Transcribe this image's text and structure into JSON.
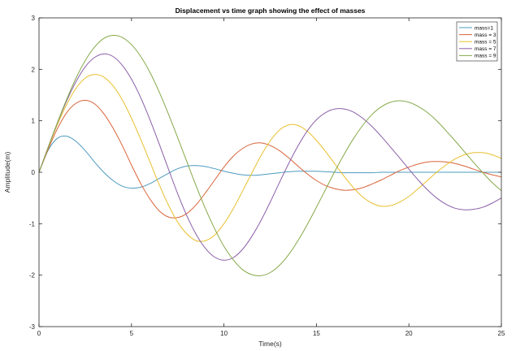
{
  "chart_data": {
    "type": "line",
    "title": "Displacement vs time graph showing the effect of masses",
    "xlabel": "Time(s)",
    "ylabel": "Amplitude(m)",
    "xlim": [
      0,
      25
    ],
    "ylim": [
      -3,
      3
    ],
    "xticks": [
      0,
      5,
      10,
      15,
      20,
      25
    ],
    "yticks": [
      -3,
      -2,
      -1,
      0,
      1,
      2,
      3
    ],
    "grid": false,
    "legend_position": "top-right",
    "series": [
      {
        "name": "mass=1",
        "color": "#4d9bbf",
        "x": [
          0,
          0.5,
          1,
          1.5,
          2,
          2.5,
          3,
          3.5,
          4,
          4.5,
          5,
          5.5,
          6,
          6.5,
          7,
          7.5,
          8,
          8.5,
          9,
          9.5,
          10,
          10.5,
          11,
          11.5,
          12,
          12.5,
          13,
          13.5,
          14,
          14.5,
          15,
          15.5,
          16,
          16.5,
          17,
          17.5,
          18,
          18.5,
          19,
          19.5,
          20,
          20.5,
          21,
          21.5,
          22,
          22.5,
          23,
          23.5,
          24,
          24.5,
          25
        ],
        "values": [
          0,
          0.43,
          0.66,
          0.7,
          0.6,
          0.42,
          0.2,
          0.0,
          -0.16,
          -0.27,
          -0.31,
          -0.29,
          -0.22,
          -0.12,
          -0.02,
          0.07,
          0.12,
          0.13,
          0.11,
          0.07,
          0.02,
          -0.02,
          -0.05,
          -0.06,
          -0.05,
          -0.03,
          -0.01,
          0.01,
          0.02,
          0.02,
          0.02,
          0.01,
          0,
          -0.01,
          -0.01,
          -0.01,
          -0.01,
          0,
          0,
          0,
          0,
          0,
          0,
          0,
          0,
          0,
          0,
          0,
          0,
          0,
          0
        ]
      },
      {
        "name": "mass = 3",
        "color": "#d9643a",
        "x": [
          0,
          0.5,
          1,
          1.5,
          2,
          2.5,
          3,
          3.5,
          4,
          4.5,
          5,
          5.5,
          6,
          6.5,
          7,
          7.5,
          8,
          8.5,
          9,
          9.5,
          10,
          10.5,
          11,
          11.5,
          12,
          12.5,
          13,
          13.5,
          14,
          14.5,
          15,
          15.5,
          16,
          16.5,
          17,
          17.5,
          18,
          18.5,
          19,
          19.5,
          20,
          20.5,
          21,
          21.5,
          22,
          22.5,
          23,
          23.5,
          24,
          24.5,
          25
        ],
        "values": [
          0,
          0.45,
          0.85,
          1.16,
          1.34,
          1.4,
          1.33,
          1.14,
          0.86,
          0.52,
          0.14,
          -0.22,
          -0.52,
          -0.75,
          -0.87,
          -0.88,
          -0.8,
          -0.63,
          -0.4,
          -0.15,
          0.1,
          0.31,
          0.46,
          0.55,
          0.57,
          0.52,
          0.42,
          0.28,
          0.12,
          -0.03,
          -0.16,
          -0.26,
          -0.32,
          -0.35,
          -0.34,
          -0.3,
          -0.23,
          -0.15,
          -0.06,
          0.03,
          0.1,
          0.16,
          0.2,
          0.21,
          0.2,
          0.17,
          0.12,
          0.06,
          0.0,
          -0.05,
          -0.09
        ]
      },
      {
        "name": "mass = 5",
        "color": "#e8c02f",
        "x": [
          0,
          0.5,
          1,
          1.5,
          2,
          2.5,
          3,
          3.5,
          4,
          4.5,
          5,
          5.5,
          6,
          6.5,
          7,
          7.5,
          8,
          8.5,
          9,
          9.5,
          10,
          10.5,
          11,
          11.5,
          12,
          12.5,
          13,
          13.5,
          14,
          14.5,
          15,
          15.5,
          16,
          16.5,
          17,
          17.5,
          18,
          18.5,
          19,
          19.5,
          20,
          20.5,
          21,
          21.5,
          22,
          22.5,
          23,
          23.5,
          24,
          24.5,
          25
        ],
        "values": [
          0,
          0.48,
          0.93,
          1.32,
          1.63,
          1.83,
          1.9,
          1.85,
          1.68,
          1.41,
          1.05,
          0.64,
          0.2,
          -0.24,
          -0.64,
          -0.97,
          -1.2,
          -1.33,
          -1.33,
          -1.22,
          -1.0,
          -0.71,
          -0.37,
          -0.02,
          0.32,
          0.61,
          0.82,
          0.92,
          0.91,
          0.8,
          0.62,
          0.4,
          0.16,
          -0.08,
          -0.3,
          -0.48,
          -0.6,
          -0.66,
          -0.65,
          -0.58,
          -0.47,
          -0.32,
          -0.16,
          0.0,
          0.14,
          0.26,
          0.34,
          0.38,
          0.38,
          0.34,
          0.27
        ]
      },
      {
        "name": "mass = 7",
        "color": "#8b5fa8",
        "x": [
          0,
          0.5,
          1,
          1.5,
          2,
          2.5,
          3,
          3.5,
          4,
          4.5,
          5,
          5.5,
          6,
          6.5,
          7,
          7.5,
          8,
          8.5,
          9,
          9.5,
          10,
          10.5,
          11,
          11.5,
          12,
          12.5,
          13,
          13.5,
          14,
          14.5,
          15,
          15.5,
          16,
          16.5,
          17,
          17.5,
          18,
          18.5,
          19,
          19.5,
          20,
          20.5,
          21,
          21.5,
          22,
          22.5,
          23,
          23.5,
          24,
          24.5,
          25
        ],
        "values": [
          0,
          0.49,
          0.96,
          1.39,
          1.76,
          2.05,
          2.23,
          2.3,
          2.25,
          2.08,
          1.81,
          1.45,
          1.02,
          0.55,
          0.06,
          -0.42,
          -0.85,
          -1.21,
          -1.48,
          -1.65,
          -1.71,
          -1.66,
          -1.5,
          -1.25,
          -0.94,
          -0.58,
          -0.2,
          0.17,
          0.51,
          0.8,
          1.02,
          1.16,
          1.23,
          1.23,
          1.17,
          1.05,
          0.89,
          0.7,
          0.49,
          0.28,
          0.06,
          -0.15,
          -0.34,
          -0.5,
          -0.62,
          -0.7,
          -0.73,
          -0.72,
          -0.68,
          -0.6,
          -0.5
        ]
      },
      {
        "name": "mass = 9",
        "color": "#86a94a",
        "x": [
          0,
          0.5,
          1,
          1.5,
          2,
          2.5,
          3,
          3.5,
          4,
          4.5,
          5,
          5.5,
          6,
          6.5,
          7,
          7.5,
          8,
          8.5,
          9,
          9.5,
          10,
          10.5,
          11,
          11.5,
          12,
          12.5,
          13,
          13.5,
          14,
          14.5,
          15,
          15.5,
          16,
          16.5,
          17,
          17.5,
          18,
          18.5,
          19,
          19.5,
          20,
          20.5,
          21,
          21.5,
          22,
          22.5,
          23,
          23.5,
          24,
          24.5,
          25
        ],
        "values": [
          0,
          0.49,
          0.97,
          1.42,
          1.83,
          2.17,
          2.43,
          2.6,
          2.66,
          2.62,
          2.48,
          2.25,
          1.94,
          1.56,
          1.13,
          0.67,
          0.2,
          -0.27,
          -0.71,
          -1.1,
          -1.44,
          -1.7,
          -1.89,
          -1.99,
          -2.01,
          -1.95,
          -1.81,
          -1.6,
          -1.33,
          -1.02,
          -0.68,
          -0.33,
          0.02,
          0.35,
          0.65,
          0.91,
          1.12,
          1.27,
          1.36,
          1.39,
          1.36,
          1.28,
          1.16,
          1.0,
          0.81,
          0.61,
          0.4,
          0.19,
          -0.01,
          -0.2,
          -0.36
        ]
      }
    ]
  }
}
